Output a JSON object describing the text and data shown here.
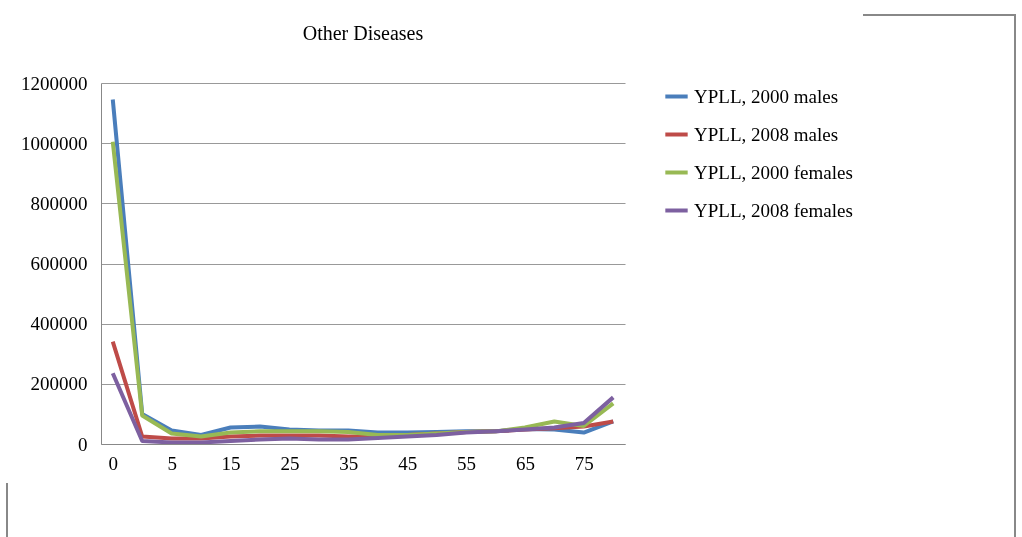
{
  "chart_data": {
    "type": "line",
    "title": "Other Diseases",
    "categories": [
      "0",
      null,
      "5",
      null,
      "15",
      null,
      "25",
      null,
      "35",
      null,
      "45",
      null,
      "55",
      null,
      "65",
      null,
      "75",
      null
    ],
    "series": [
      {
        "name": "YPLL, 2000 males",
        "color": "#4a7ebb",
        "values": [
          1145000,
          100000,
          45000,
          30000,
          55000,
          58000,
          48000,
          45000,
          45000,
          38000,
          38000,
          40000,
          42000,
          42000,
          50000,
          48000,
          38000,
          75000
        ]
      },
      {
        "name": "YPLL, 2008 males",
        "color": "#be4b48",
        "values": [
          340000,
          25000,
          18000,
          18000,
          25000,
          28000,
          28000,
          28000,
          25000,
          25000,
          30000,
          35000,
          40000,
          42000,
          48000,
          52000,
          58000,
          75000
        ]
      },
      {
        "name": "YPLL, 2000 females",
        "color": "#98b954",
        "values": [
          1005000,
          95000,
          35000,
          25000,
          38000,
          42000,
          42000,
          42000,
          40000,
          30000,
          30000,
          35000,
          40000,
          42000,
          55000,
          75000,
          60000,
          135000
        ]
      },
      {
        "name": "YPLL, 2008 females",
        "color": "#7d60a0",
        "values": [
          235000,
          10000,
          5000,
          5000,
          10000,
          15000,
          18000,
          15000,
          15000,
          20000,
          25000,
          30000,
          38000,
          42000,
          48000,
          55000,
          70000,
          155000
        ]
      }
    ],
    "ylim": [
      0,
      1200000
    ],
    "yticks": [
      0,
      200000,
      400000,
      600000,
      800000,
      1000000,
      1200000
    ],
    "grid": "y",
    "legend": "right",
    "marker": "none",
    "line_style": "solid"
  }
}
